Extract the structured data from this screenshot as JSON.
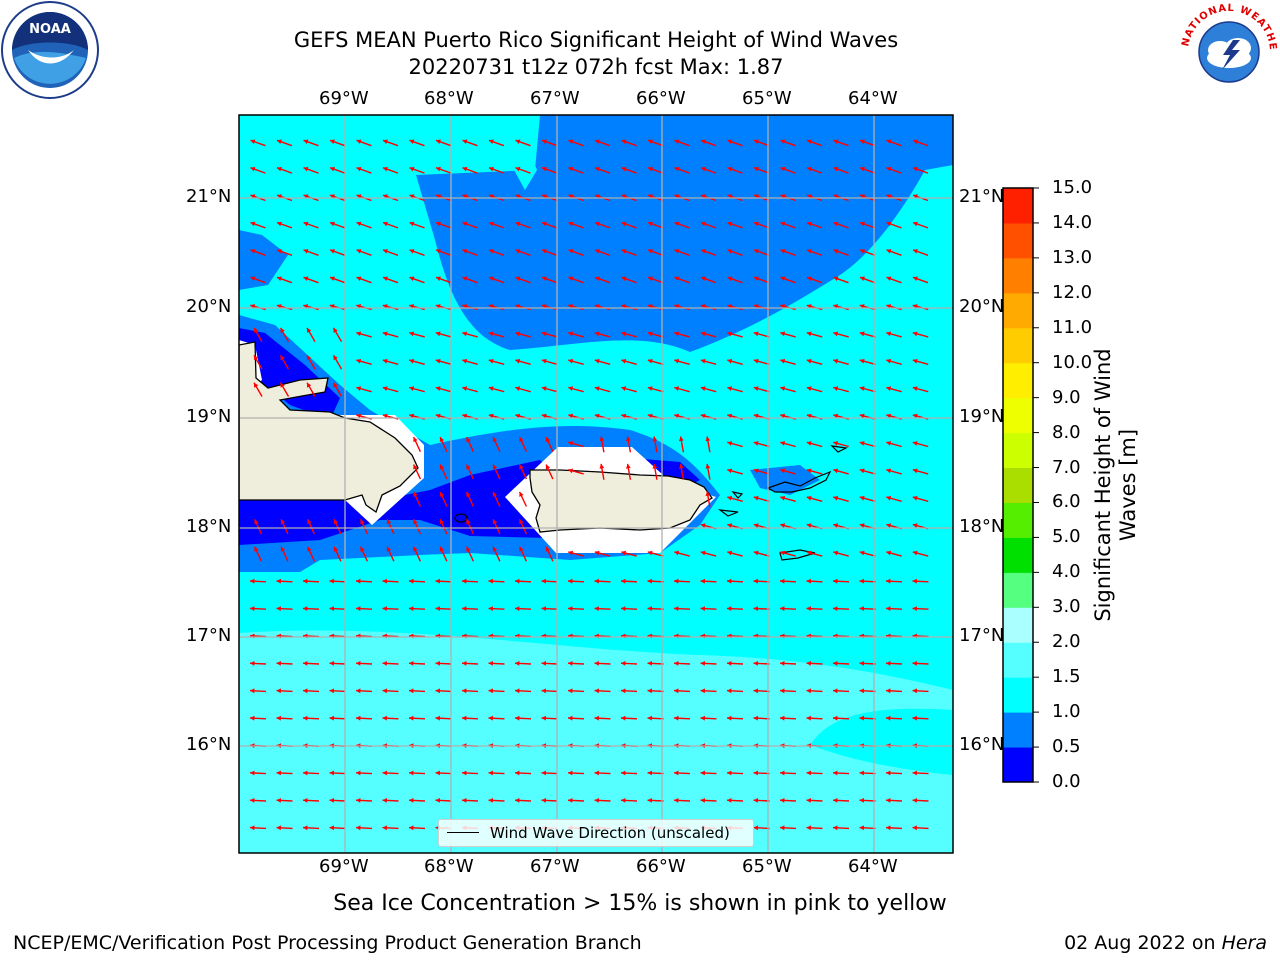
{
  "header": {
    "title_line1": "GEFS MEAN Puerto Rico Significant Height of Wind Waves",
    "title_line2": "20220731 t12z 072h fcst   Max: 1.87"
  },
  "map": {
    "lon_labels": [
      "69°W",
      "68°W",
      "67°W",
      "66°W",
      "65°W",
      "64°W"
    ],
    "lat_labels": [
      "21°N",
      "20°N",
      "19°N",
      "18°N",
      "17°N",
      "16°N"
    ],
    "land_color": "#efeedd",
    "ocean_fill_color": "#00ffff",
    "arrow_color": "#ff0000",
    "legend_label": "Wind Wave Direction (unscaled)"
  },
  "colorbar": {
    "label": "Significant Height of Wind Waves [m]",
    "ticks": [
      "0.0",
      "0.5",
      "1.0",
      "1.5",
      "2.0",
      "3.0",
      "4.0",
      "5.0",
      "6.0",
      "7.0",
      "8.0",
      "9.0",
      "10.0",
      "11.0",
      "12.0",
      "13.0",
      "14.0",
      "15.0"
    ],
    "colors": [
      "#0000ff",
      "#0080ff",
      "#00ffff",
      "#55ffff",
      "#aaffff",
      "#55ff80",
      "#00e000",
      "#55ee00",
      "#aadd00",
      "#ccff00",
      "#eeff00",
      "#ffee00",
      "#ffcc00",
      "#ffaa00",
      "#ff8000",
      "#ff5000",
      "#ff2000"
    ]
  },
  "footer": {
    "note": "Sea Ice Concentration > 15% is shown in pink to yellow",
    "left": "NCEP/EMC/Verification Post Processing Product Generation Branch",
    "right_date": "02 Aug 2022 on ",
    "right_machine": "Hera"
  },
  "logos": {
    "noaa": "NOAA",
    "nws_text": "NATIONAL WEATHER SERVICE"
  }
}
